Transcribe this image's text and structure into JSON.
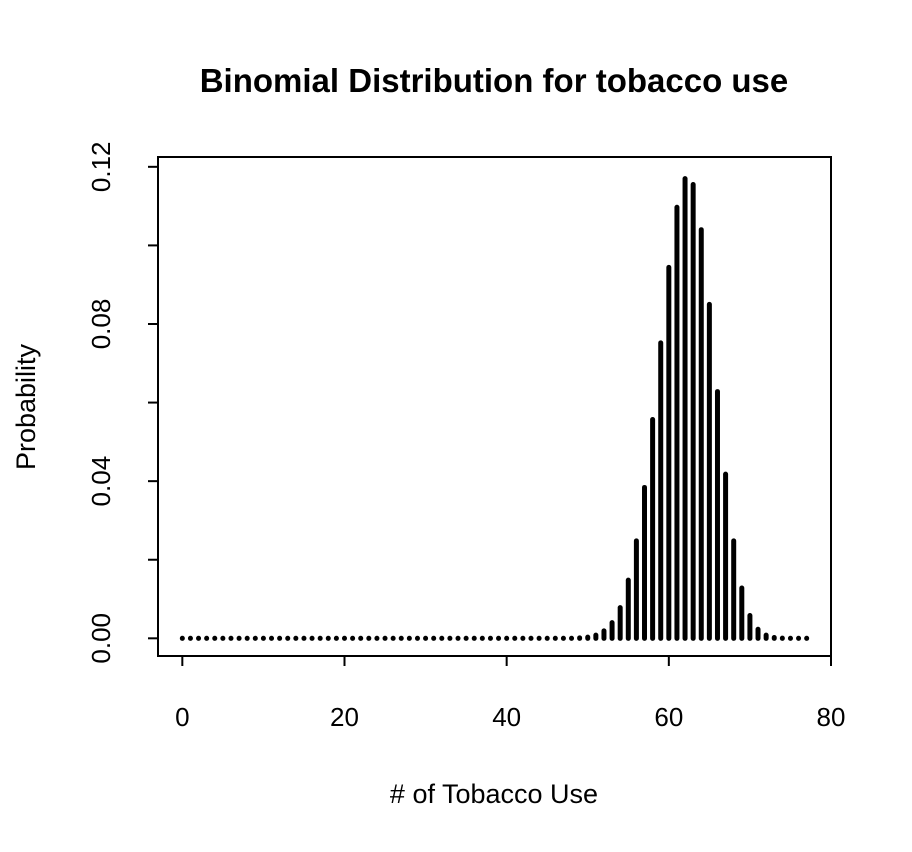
{
  "chart_data": {
    "type": "bar",
    "title": "Binomial Distribution for tobacco use",
    "xlabel": "# of Tobacco Use",
    "ylabel": "Probability",
    "xlim": [
      -3,
      80
    ],
    "ylim": [
      -0.0045,
      0.1225
    ],
    "x_ticks": [
      0,
      20,
      40,
      60,
      80
    ],
    "x_tick_labels": [
      "0",
      "20",
      "40",
      "60",
      "80"
    ],
    "y_ticks": [
      0,
      0.02,
      0.04,
      0.06,
      0.08,
      0.1,
      0.12
    ],
    "y_tick_labels": [
      "0.00",
      "",
      "0.04",
      "",
      "0.08",
      "",
      "0.12"
    ],
    "x": [
      0,
      1,
      2,
      3,
      4,
      5,
      6,
      7,
      8,
      9,
      10,
      11,
      12,
      13,
      14,
      15,
      16,
      17,
      18,
      19,
      20,
      21,
      22,
      23,
      24,
      25,
      26,
      27,
      28,
      29,
      30,
      31,
      32,
      33,
      34,
      35,
      36,
      37,
      38,
      39,
      40,
      41,
      42,
      43,
      44,
      45,
      46,
      47,
      48,
      49,
      50,
      51,
      52,
      53,
      54,
      55,
      56,
      57,
      58,
      59,
      60,
      61,
      62,
      63,
      64,
      65,
      66,
      67,
      68,
      69,
      70,
      71,
      72,
      73,
      74,
      75,
      76,
      77
    ],
    "values": [
      0,
      0,
      0,
      0,
      0,
      0,
      0,
      0,
      0,
      0,
      0,
      0,
      0,
      0,
      0,
      0,
      0,
      0,
      0,
      0,
      0,
      0,
      0,
      0,
      0,
      0,
      0,
      0,
      0,
      0,
      0,
      0,
      0,
      0,
      0,
      0,
      0,
      0,
      0,
      0,
      0,
      0,
      0,
      0,
      0,
      0,
      0,
      0,
      0,
      0.0001,
      0.0003,
      0.0008,
      0.0019,
      0.004,
      0.0078,
      0.0148,
      0.0248,
      0.0384,
      0.0557,
      0.0752,
      0.0944,
      0.1097,
      0.117,
      0.1155,
      0.104,
      0.085,
      0.0628,
      0.0418,
      0.0248,
      0.0128,
      0.0058,
      0.0023,
      0.0008,
      0.0002,
      5e-05,
      0,
      0,
      0
    ],
    "grid": false,
    "legend": "none"
  }
}
